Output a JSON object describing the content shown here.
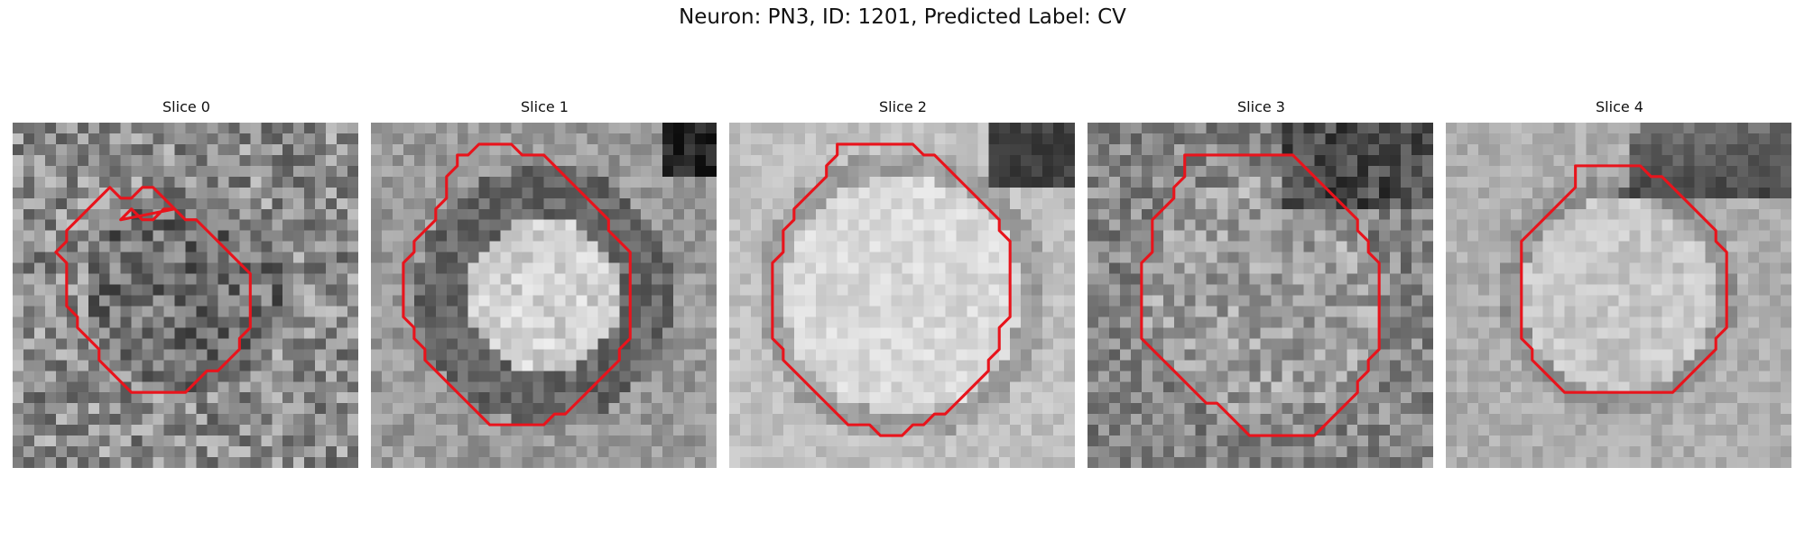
{
  "figure": {
    "title": "Neuron: PN3, ID: 1201, Predicted Label: CV"
  },
  "colors": {
    "contour": "#e8141c",
    "background": "#ffffff"
  },
  "slices": [
    {
      "title": "Slice 0",
      "type": "noise-dark",
      "seed": 11,
      "contour": [
        [
          10,
          9
        ],
        [
          11,
          8
        ],
        [
          12,
          9
        ],
        [
          13,
          9
        ],
        [
          14,
          8
        ],
        [
          15,
          8
        ],
        [
          16,
          9
        ],
        [
          17,
          9
        ],
        [
          18,
          10
        ],
        [
          19,
          11
        ],
        [
          20,
          12
        ],
        [
          21,
          13
        ],
        [
          22,
          14
        ],
        [
          22,
          15
        ],
        [
          22,
          16
        ],
        [
          22,
          17
        ],
        [
          22,
          18
        ],
        [
          22,
          19
        ],
        [
          21,
          20
        ],
        [
          21,
          21
        ],
        [
          20,
          22
        ],
        [
          19,
          23
        ],
        [
          18,
          23
        ],
        [
          17,
          24
        ],
        [
          16,
          25
        ],
        [
          15,
          25
        ],
        [
          14,
          25
        ],
        [
          13,
          25
        ],
        [
          12,
          25
        ],
        [
          11,
          25
        ],
        [
          10,
          24
        ],
        [
          9,
          23
        ],
        [
          8,
          22
        ],
        [
          8,
          21
        ],
        [
          7,
          20
        ],
        [
          6,
          19
        ],
        [
          6,
          18
        ],
        [
          5,
          17
        ],
        [
          5,
          16
        ],
        [
          5,
          15
        ],
        [
          5,
          14
        ],
        [
          5,
          13
        ],
        [
          4,
          12
        ],
        [
          5,
          11
        ],
        [
          5,
          10
        ],
        [
          6,
          9
        ],
        [
          7,
          8
        ],
        [
          8,
          7
        ],
        [
          9,
          6
        ],
        [
          10,
          7
        ],
        [
          11,
          7
        ],
        [
          12,
          6
        ],
        [
          13,
          6
        ],
        [
          14,
          7
        ],
        [
          15,
          8
        ]
      ]
    },
    {
      "title": "Slice 1",
      "type": "ring-bright",
      "seed": 23,
      "contour": [
        [
          8,
          3
        ],
        [
          9,
          3
        ],
        [
          10,
          2
        ],
        [
          11,
          2
        ],
        [
          12,
          2
        ],
        [
          13,
          2
        ],
        [
          14,
          3
        ],
        [
          15,
          3
        ],
        [
          16,
          3
        ],
        [
          17,
          4
        ],
        [
          18,
          5
        ],
        [
          19,
          6
        ],
        [
          20,
          7
        ],
        [
          21,
          8
        ],
        [
          22,
          9
        ],
        [
          22,
          10
        ],
        [
          23,
          11
        ],
        [
          24,
          12
        ],
        [
          24,
          13
        ],
        [
          24,
          14
        ],
        [
          24,
          15
        ],
        [
          24,
          16
        ],
        [
          24,
          17
        ],
        [
          24,
          18
        ],
        [
          24,
          19
        ],
        [
          24,
          20
        ],
        [
          23,
          21
        ],
        [
          23,
          22
        ],
        [
          22,
          23
        ],
        [
          21,
          24
        ],
        [
          20,
          25
        ],
        [
          19,
          26
        ],
        [
          18,
          27
        ],
        [
          17,
          27
        ],
        [
          16,
          28
        ],
        [
          15,
          28
        ],
        [
          14,
          28
        ],
        [
          13,
          28
        ],
        [
          12,
          28
        ],
        [
          11,
          28
        ],
        [
          10,
          27
        ],
        [
          9,
          26
        ],
        [
          8,
          25
        ],
        [
          7,
          24
        ],
        [
          6,
          23
        ],
        [
          5,
          22
        ],
        [
          5,
          21
        ],
        [
          4,
          20
        ],
        [
          4,
          19
        ],
        [
          3,
          18
        ],
        [
          3,
          17
        ],
        [
          3,
          16
        ],
        [
          3,
          15
        ],
        [
          3,
          14
        ],
        [
          3,
          13
        ],
        [
          4,
          12
        ],
        [
          4,
          11
        ],
        [
          5,
          10
        ],
        [
          6,
          9
        ],
        [
          6,
          8
        ],
        [
          7,
          7
        ],
        [
          7,
          6
        ],
        [
          7,
          5
        ],
        [
          8,
          4
        ],
        [
          8,
          3
        ]
      ]
    },
    {
      "title": "Slice 2",
      "type": "disc-bright",
      "seed": 37,
      "contour": [
        [
          10,
          2
        ],
        [
          11,
          2
        ],
        [
          12,
          2
        ],
        [
          13,
          2
        ],
        [
          14,
          2
        ],
        [
          15,
          2
        ],
        [
          16,
          2
        ],
        [
          17,
          2
        ],
        [
          18,
          3
        ],
        [
          19,
          3
        ],
        [
          20,
          4
        ],
        [
          21,
          5
        ],
        [
          22,
          6
        ],
        [
          23,
          7
        ],
        [
          24,
          8
        ],
        [
          25,
          9
        ],
        [
          25,
          10
        ],
        [
          26,
          11
        ],
        [
          26,
          12
        ],
        [
          26,
          13
        ],
        [
          26,
          14
        ],
        [
          26,
          15
        ],
        [
          26,
          16
        ],
        [
          26,
          17
        ],
        [
          26,
          18
        ],
        [
          25,
          19
        ],
        [
          25,
          20
        ],
        [
          25,
          21
        ],
        [
          24,
          22
        ],
        [
          24,
          23
        ],
        [
          23,
          24
        ],
        [
          22,
          25
        ],
        [
          21,
          26
        ],
        [
          20,
          27
        ],
        [
          19,
          27
        ],
        [
          18,
          28
        ],
        [
          17,
          28
        ],
        [
          16,
          29
        ],
        [
          15,
          29
        ],
        [
          14,
          29
        ],
        [
          13,
          28
        ],
        [
          12,
          28
        ],
        [
          11,
          28
        ],
        [
          10,
          27
        ],
        [
          9,
          26
        ],
        [
          8,
          25
        ],
        [
          7,
          24
        ],
        [
          6,
          23
        ],
        [
          5,
          22
        ],
        [
          5,
          21
        ],
        [
          4,
          20
        ],
        [
          4,
          19
        ],
        [
          4,
          18
        ],
        [
          4,
          17
        ],
        [
          4,
          16
        ],
        [
          4,
          15
        ],
        [
          4,
          14
        ],
        [
          4,
          13
        ],
        [
          5,
          12
        ],
        [
          5,
          11
        ],
        [
          5,
          10
        ],
        [
          6,
          9
        ],
        [
          6,
          8
        ],
        [
          7,
          7
        ],
        [
          8,
          6
        ],
        [
          9,
          5
        ],
        [
          9,
          4
        ],
        [
          10,
          3
        ],
        [
          10,
          2
        ]
      ]
    },
    {
      "title": "Slice 3",
      "type": "noise-mid",
      "seed": 53,
      "contour": [
        [
          9,
          3
        ],
        [
          10,
          3
        ],
        [
          11,
          3
        ],
        [
          12,
          3
        ],
        [
          13,
          3
        ],
        [
          14,
          3
        ],
        [
          15,
          3
        ],
        [
          16,
          3
        ],
        [
          17,
          3
        ],
        [
          18,
          3
        ],
        [
          19,
          3
        ],
        [
          20,
          4
        ],
        [
          21,
          5
        ],
        [
          22,
          6
        ],
        [
          23,
          7
        ],
        [
          24,
          8
        ],
        [
          25,
          9
        ],
        [
          25,
          10
        ],
        [
          26,
          11
        ],
        [
          26,
          12
        ],
        [
          27,
          13
        ],
        [
          27,
          14
        ],
        [
          27,
          15
        ],
        [
          27,
          16
        ],
        [
          27,
          17
        ],
        [
          27,
          18
        ],
        [
          27,
          19
        ],
        [
          27,
          20
        ],
        [
          27,
          21
        ],
        [
          26,
          22
        ],
        [
          26,
          23
        ],
        [
          25,
          24
        ],
        [
          25,
          25
        ],
        [
          24,
          26
        ],
        [
          23,
          27
        ],
        [
          22,
          28
        ],
        [
          21,
          29
        ],
        [
          20,
          29
        ],
        [
          19,
          29
        ],
        [
          18,
          29
        ],
        [
          17,
          29
        ],
        [
          16,
          29
        ],
        [
          15,
          29
        ],
        [
          14,
          28
        ],
        [
          13,
          27
        ],
        [
          12,
          26
        ],
        [
          11,
          26
        ],
        [
          10,
          25
        ],
        [
          9,
          24
        ],
        [
          8,
          23
        ],
        [
          7,
          22
        ],
        [
          6,
          21
        ],
        [
          5,
          20
        ],
        [
          5,
          19
        ],
        [
          5,
          18
        ],
        [
          5,
          17
        ],
        [
          5,
          16
        ],
        [
          5,
          15
        ],
        [
          5,
          14
        ],
        [
          5,
          13
        ],
        [
          6,
          12
        ],
        [
          6,
          11
        ],
        [
          6,
          10
        ],
        [
          6,
          9
        ],
        [
          7,
          8
        ],
        [
          8,
          7
        ],
        [
          8,
          6
        ],
        [
          9,
          5
        ],
        [
          9,
          4
        ],
        [
          9,
          3
        ]
      ]
    },
    {
      "title": "Slice 4",
      "type": "disc-soft",
      "seed": 71,
      "contour": [
        [
          12,
          4
        ],
        [
          13,
          4
        ],
        [
          14,
          4
        ],
        [
          15,
          4
        ],
        [
          16,
          4
        ],
        [
          17,
          4
        ],
        [
          18,
          4
        ],
        [
          19,
          5
        ],
        [
          20,
          5
        ],
        [
          21,
          6
        ],
        [
          22,
          7
        ],
        [
          23,
          8
        ],
        [
          24,
          9
        ],
        [
          25,
          10
        ],
        [
          25,
          11
        ],
        [
          26,
          12
        ],
        [
          26,
          13
        ],
        [
          26,
          14
        ],
        [
          26,
          15
        ],
        [
          26,
          16
        ],
        [
          26,
          17
        ],
        [
          26,
          18
        ],
        [
          26,
          19
        ],
        [
          25,
          20
        ],
        [
          25,
          21
        ],
        [
          24,
          22
        ],
        [
          23,
          23
        ],
        [
          22,
          24
        ],
        [
          21,
          25
        ],
        [
          20,
          25
        ],
        [
          19,
          25
        ],
        [
          18,
          25
        ],
        [
          17,
          25
        ],
        [
          16,
          25
        ],
        [
          15,
          25
        ],
        [
          14,
          25
        ],
        [
          13,
          25
        ],
        [
          12,
          25
        ],
        [
          11,
          25
        ],
        [
          10,
          24
        ],
        [
          9,
          23
        ],
        [
          8,
          22
        ],
        [
          8,
          21
        ],
        [
          7,
          20
        ],
        [
          7,
          19
        ],
        [
          7,
          18
        ],
        [
          7,
          17
        ],
        [
          7,
          16
        ],
        [
          7,
          15
        ],
        [
          7,
          14
        ],
        [
          7,
          13
        ],
        [
          7,
          12
        ],
        [
          7,
          11
        ],
        [
          8,
          10
        ],
        [
          9,
          9
        ],
        [
          10,
          8
        ],
        [
          11,
          7
        ],
        [
          12,
          6
        ],
        [
          12,
          5
        ],
        [
          12,
          4
        ]
      ]
    }
  ]
}
